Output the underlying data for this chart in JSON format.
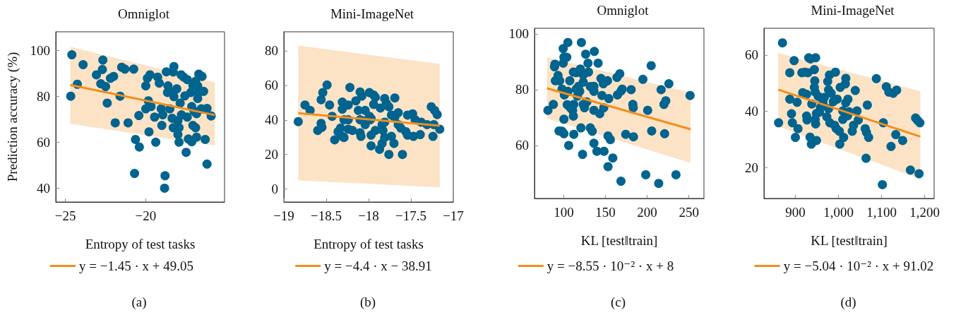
{
  "chart_data": [
    {
      "type": "scatter",
      "title": "Omniglot",
      "xlabel": "Entropy of test tasks",
      "ylabel": "Prediction accuracy (%)",
      "xlim": [
        -25.6,
        -15.1
      ],
      "ylim": [
        34,
        108
      ],
      "xticks": [
        {
          "value": -25,
          "label": "−25"
        },
        {
          "value": -20,
          "label": "−20"
        }
      ],
      "yticks": [
        40,
        60,
        80,
        100
      ],
      "legend": "bottom",
      "annotations": [
        "(a)"
      ],
      "series": [
        {
          "type": "scatter",
          "marker": "circle",
          "color": "#00648f",
          "x": [
            -24.6,
            -24.67,
            -24.26,
            -23.9,
            -23.07,
            -22.7,
            -22.67,
            -22.8,
            -22.5,
            -22.2,
            -22.0,
            -22.4,
            -21.9,
            -21.6,
            -21.5,
            -21.3,
            -20.75,
            -21.1,
            -20.64,
            -20.4,
            -20.43,
            -20.7,
            -20.0,
            -19.9,
            -19.74,
            -19.84,
            -20.0,
            -19.67,
            -19.8,
            -19.45,
            -19.38,
            -19.26,
            -19.16,
            -19.04,
            -18.94,
            -19.0,
            -18.8,
            -18.83,
            -18.72,
            -18.25,
            -18.29,
            -18.65,
            -18.62,
            -18.4,
            -18.5,
            -18.36,
            -18.29,
            -18.07,
            -18.25,
            -18.0,
            -17.93,
            -18.0,
            -17.93,
            -17.86,
            -17.78,
            -17.8,
            -17.64,
            -17.42,
            -17.49,
            -17.42,
            -17.57,
            -17.35,
            -17.14,
            -16.84,
            -17.14,
            -17.0,
            -16.84,
            -17.07,
            -16.9,
            -17.2,
            -17.07,
            -16.9,
            -16.77,
            -16.7,
            -16.7,
            -16.5,
            -16.77,
            -16.4,
            -16.55,
            -16.19,
            -16.3,
            -16.19,
            -15.93
          ],
          "values": [
            98,
            80,
            85.2,
            93.7,
            89.3,
            91.6,
            95.7,
            85.4,
            84.2,
            87.8,
            88.6,
            77,
            68.4,
            80,
            92.6,
            91.8,
            91.8,
            68.4,
            61.2,
            57.9,
            71.6,
            46.4,
            84.5,
            87.8,
            89.3,
            78,
            74.5,
            75.5,
            64.5,
            70.9,
            60,
            88.3,
            85.7,
            74.5,
            71.9,
            67.3,
            45.4,
            40,
            90.6,
            92.9,
            90.5,
            81.6,
            84.5,
            81.8,
            74.5,
            70.4,
            66.3,
            83.2,
            79.8,
            69.4,
            66.3,
            63.3,
            60,
            77,
            71.9,
            89.3,
            88.3,
            87.2,
            55.6,
            70.9,
            80.1,
            61.4,
            60.2,
            62.2,
            75.5,
            73.5,
            72.4,
            67.3,
            66.3,
            81.6,
            84.7,
            86.5,
            79,
            81.6,
            89.6,
            88.6,
            84.5,
            82.1,
            74.5,
            74.7,
            61.2,
            50.5,
            71.4
          ]
        },
        {
          "type": "line",
          "marker": "none",
          "name": "y = −1.45 · x + 49.05",
          "color": "#f28e1c",
          "x": [
            -24.7,
            -15.7
          ],
          "values": [
            84.9,
            71.8
          ],
          "lower": [
            68,
            58.5
          ],
          "upper": [
            101.5,
            86
          ]
        }
      ]
    },
    {
      "type": "scatter",
      "title": "Mini-ImageNet",
      "xlabel": "Entropy of test tasks",
      "xlim": [
        -19,
        -17
      ],
      "ylim": [
        -7.5,
        91
      ],
      "xticks": [
        {
          "value": -19,
          "label": "−19"
        },
        {
          "value": -18.5,
          "label": "−18.5"
        },
        {
          "value": -18,
          "label": "−18"
        },
        {
          "value": -17.5,
          "label": "−17.5"
        },
        {
          "value": -17,
          "label": "−17"
        }
      ],
      "yticks": [
        0,
        20,
        40,
        60,
        80
      ],
      "legend": "bottom",
      "annotations": [
        "(b)"
      ],
      "series": [
        {
          "type": "scatter",
          "marker": "circle",
          "color": "#00648f",
          "x": [
            -18.83,
            -18.75,
            -18.69,
            -18.6,
            -18.56,
            -18.55,
            -18.56,
            -18.54,
            -18.49,
            -18.46,
            -18.43,
            -18.4,
            -18.36,
            -18.33,
            -18.31,
            -18.29,
            -18.31,
            -18.24,
            -18.31,
            -18.29,
            -18.24,
            -18.24,
            -18.19,
            -18.22,
            -18.15,
            -18.1,
            -18.08,
            -18.12,
            -18.1,
            -18.1,
            -18.09,
            -18.06,
            -18.04,
            -18.04,
            -17.99,
            -17.99,
            -17.94,
            -17.92,
            -17.94,
            -17.98,
            -17.97,
            -17.97,
            -17.97,
            -17.92,
            -17.86,
            -17.84,
            -17.81,
            -17.81,
            -17.79,
            -17.76,
            -17.83,
            -17.81,
            -17.84,
            -17.87,
            -17.76,
            -17.73,
            -17.7,
            -17.69,
            -17.73,
            -17.69,
            -17.65,
            -17.65,
            -17.62,
            -17.56,
            -17.6,
            -17.54,
            -17.48,
            -17.54,
            -17.47,
            -17.45,
            -17.38,
            -17.39,
            -17.31,
            -17.26,
            -17.22,
            -17.19,
            -17.24,
            -17.23,
            -17.16
          ],
          "values": [
            39,
            48.6,
            45.5,
            33.9,
            38,
            35.7,
            51.7,
            55.8,
            60.2,
            48.6,
            42.1,
            28.5,
            33.2,
            35.3,
            30.5,
            29.8,
            50.3,
            48.6,
            46.2,
            40.1,
            40.1,
            34.6,
            33.9,
            58.8,
            51,
            56.2,
            53.8,
            45.5,
            40.1,
            32.6,
            30.5,
            39.4,
            45.5,
            37.3,
            42.1,
            55.8,
            54.4,
            53.1,
            49,
            40.1,
            40.8,
            25,
            31.2,
            33.9,
            46.9,
            37.3,
            38.7,
            52.4,
            49.6,
            47.6,
            33.9,
            29.8,
            26.4,
            23,
            20,
            30.5,
            26.4,
            52.7,
            42.8,
            41.4,
            44.2,
            37.3,
            35.3,
            33.2,
            20,
            42.8,
            43.5,
            31.2,
            30.5,
            40.1,
            38.7,
            31.5,
            37.3,
            47.6,
            45.5,
            43.1,
            30.5,
            37.3,
            34.6
          ]
        },
        {
          "type": "line",
          "marker": "none",
          "name": "y = −4.4 · x − 38.91",
          "color": "#f28e1c",
          "x": [
            -18.83,
            -17.16
          ],
          "values": [
            43.9,
            36.6
          ],
          "lower": [
            5,
            1
          ],
          "upper": [
            83,
            72.4
          ]
        }
      ]
    },
    {
      "type": "scatter",
      "title": "Omniglot",
      "xlabel": "KL [test‖train]",
      "xlim": [
        65,
        268
      ],
      "ylim": [
        41,
        102
      ],
      "xticks": [
        100,
        150,
        200,
        250
      ],
      "yticks": [
        60,
        80,
        100
      ],
      "legend": "bottom",
      "annotations": [
        "(c)"
      ],
      "series": [
        {
          "type": "scatter",
          "marker": "circle",
          "color": "#00648f",
          "x": [
            81.1,
            87.6,
            89,
            89.5,
            90,
            93.2,
            95.2,
            94.4,
            98,
            100.3,
            99.4,
            100.3,
            103.7,
            99.4,
            105,
            98,
            100.8,
            105.1,
            100.3,
            106,
            104.2,
            107.9,
            110.7,
            111.6,
            112.1,
            107.3,
            111.6,
            115,
            112.1,
            115,
            117.8,
            120,
            116.4,
            119.2,
            121.2,
            120.6,
            122.6,
            123.4,
            124.9,
            127.7,
            123.4,
            123.4,
            126.3,
            129.7,
            129.1,
            131.9,
            136.2,
            136.2,
            136.7,
            131.9,
            134.2,
            136.2,
            136.2,
            143.2,
            139.8,
            148.3,
            141.2,
            144.6,
            147.5,
            152.5,
            145.8,
            148,
            154,
            153.1,
            155.9,
            153.1,
            158.8,
            163.8,
            167.2,
            164.4,
            168.6,
            170.1,
            168.6,
            174.3,
            180.8,
            182.8,
            183.3,
            183.6,
            194.9,
            198.3,
            200.6,
            204.8,
            205.4,
            213.8,
            216.7,
            220.1,
            222.3,
            220.9,
            226,
            234.5,
            251.4
          ],
          "values": [
            72.6,
            74.7,
            88.2,
            89.1,
            83.2,
            85.1,
            83.2,
            65.2,
            65.1,
            64.2,
            94.7,
            91.6,
            91.6,
            89.5,
            96.9,
            80.2,
            78.1,
            79.4,
            69.4,
            60,
            74.6,
            73.5,
            72.6,
            70.5,
            64,
            83.2,
            86.3,
            86.1,
            74.7,
            80.2,
            81.2,
            87.4,
            77.7,
            79.4,
            96.9,
            66.3,
            56.8,
            74.7,
            73.5,
            75.6,
            85.3,
            82.7,
            92.7,
            86.3,
            89.5,
            81.1,
            79.4,
            81.2,
            93.7,
            66.3,
            65.1,
            60.8,
            72.6,
            71.4,
            57.9,
            57.9,
            89.5,
            84,
            82.1,
            83.2,
            77.9,
            73.5,
            76.8,
            63.4,
            62.1,
            52.4,
            55.5,
            84.4,
            85.7,
            78.1,
            79.5,
            80.2,
            47.2,
            64,
            80,
            74.7,
            73.5,
            63.1,
            83.7,
            49.5,
            72.6,
            88.6,
            65.2,
            46.4,
            80,
            74.7,
            76,
            64.2,
            82.1,
            49.5,
            77.9
          ]
        },
        {
          "type": "line",
          "marker": "none",
          "name": "y = −8.55 · 10⁻² · x + 8",
          "color": "#f28e1c",
          "x": [
            80,
            252
          ],
          "values": [
            80.5,
            65.8
          ],
          "lower": [
            69.7,
            53.7
          ],
          "upper": [
            91.6,
            78.9
          ]
        }
      ]
    },
    {
      "type": "scatter",
      "title": "Mini-ImageNet",
      "xlabel": "KL [test‖train]",
      "xlim": [
        827,
        1222
      ],
      "ylim": [
        9,
        69.5
      ],
      "xticks": [
        900,
        {
          "value": 1000,
          "label": "1,000"
        },
        {
          "value": 1100,
          "label": "1,100"
        },
        {
          "value": 1200,
          "label": "1,200"
        }
      ],
      "yticks": [
        20,
        40,
        60
      ],
      "legend": "bottom",
      "annotations": [
        "(d)"
      ],
      "series": [
        {
          "type": "scatter",
          "marker": "circle",
          "color": "#00648f",
          "x": [
            861,
            870,
            887,
            887,
            897,
            891,
            893,
            900,
            904,
            906,
            915,
            922,
            929,
            917,
            926,
            926,
            927,
            931,
            935,
            947,
            944,
            934,
            937,
            949,
            938,
            945,
            944,
            946,
            953,
            946,
            947,
            949,
            956,
            958,
            964,
            967,
            973,
            975,
            979,
            977,
            983,
            980,
            977,
            993,
            988,
            997,
            991,
            995,
            1002,
            1003,
            1004,
            1010,
            1016,
            1017,
            1012,
            1010,
            1021,
            1017,
            1022,
            1025,
            1032,
            1035,
            1039,
            1043,
            1046,
            1062,
            1065,
            1067,
            1064,
            1070,
            1088,
            1102,
            1104,
            1111,
            1117,
            1122,
            1127,
            1135,
            1133,
            1149,
            1167,
            1179,
            1184,
            1187,
            1189
          ],
          "values": [
            35.9,
            64.3,
            53.7,
            44.3,
            58,
            39.1,
            35.9,
            30.7,
            43.2,
            33.8,
            53.7,
            53.9,
            53.7,
            46.6,
            46,
            38.3,
            36.9,
            59,
            58.6,
            59,
            54.8,
            30.8,
            28.3,
            29.6,
            42.6,
            50.8,
            48.5,
            46.8,
            45.3,
            37.1,
            35.5,
            39.2,
            39.7,
            41.3,
            43,
            44.9,
            38,
            50.6,
            52.9,
            47.6,
            46.4,
            35.9,
            40.9,
            53.9,
            43.4,
            44.3,
            35,
            33.8,
            32.9,
            28.3,
            48.5,
            40.1,
            49.7,
            51.7,
            30.7,
            37.1,
            38.4,
            43,
            44.3,
            39.8,
            32.9,
            35,
            47.4,
            40.1,
            36.9,
            33.8,
            32.5,
            42.2,
            23.3,
            30.7,
            51.6,
            13.9,
            35.9,
            48.7,
            46.8,
            27.5,
            46.4,
            47.5,
            31.7,
            29.6,
            19.1,
            37.6,
            36.7,
            17.8,
            35.9
          ]
        },
        {
          "type": "line",
          "marker": "none",
          "name": "y = −5.04 · 10⁻² · x + 91.02",
          "color": "#f28e1c",
          "x": [
            860,
            1190
          ],
          "values": [
            47.7,
            31
          ],
          "lower": [
            34.6,
            15.9
          ],
          "upper": [
            60.7,
            47.1
          ]
        }
      ]
    }
  ]
}
